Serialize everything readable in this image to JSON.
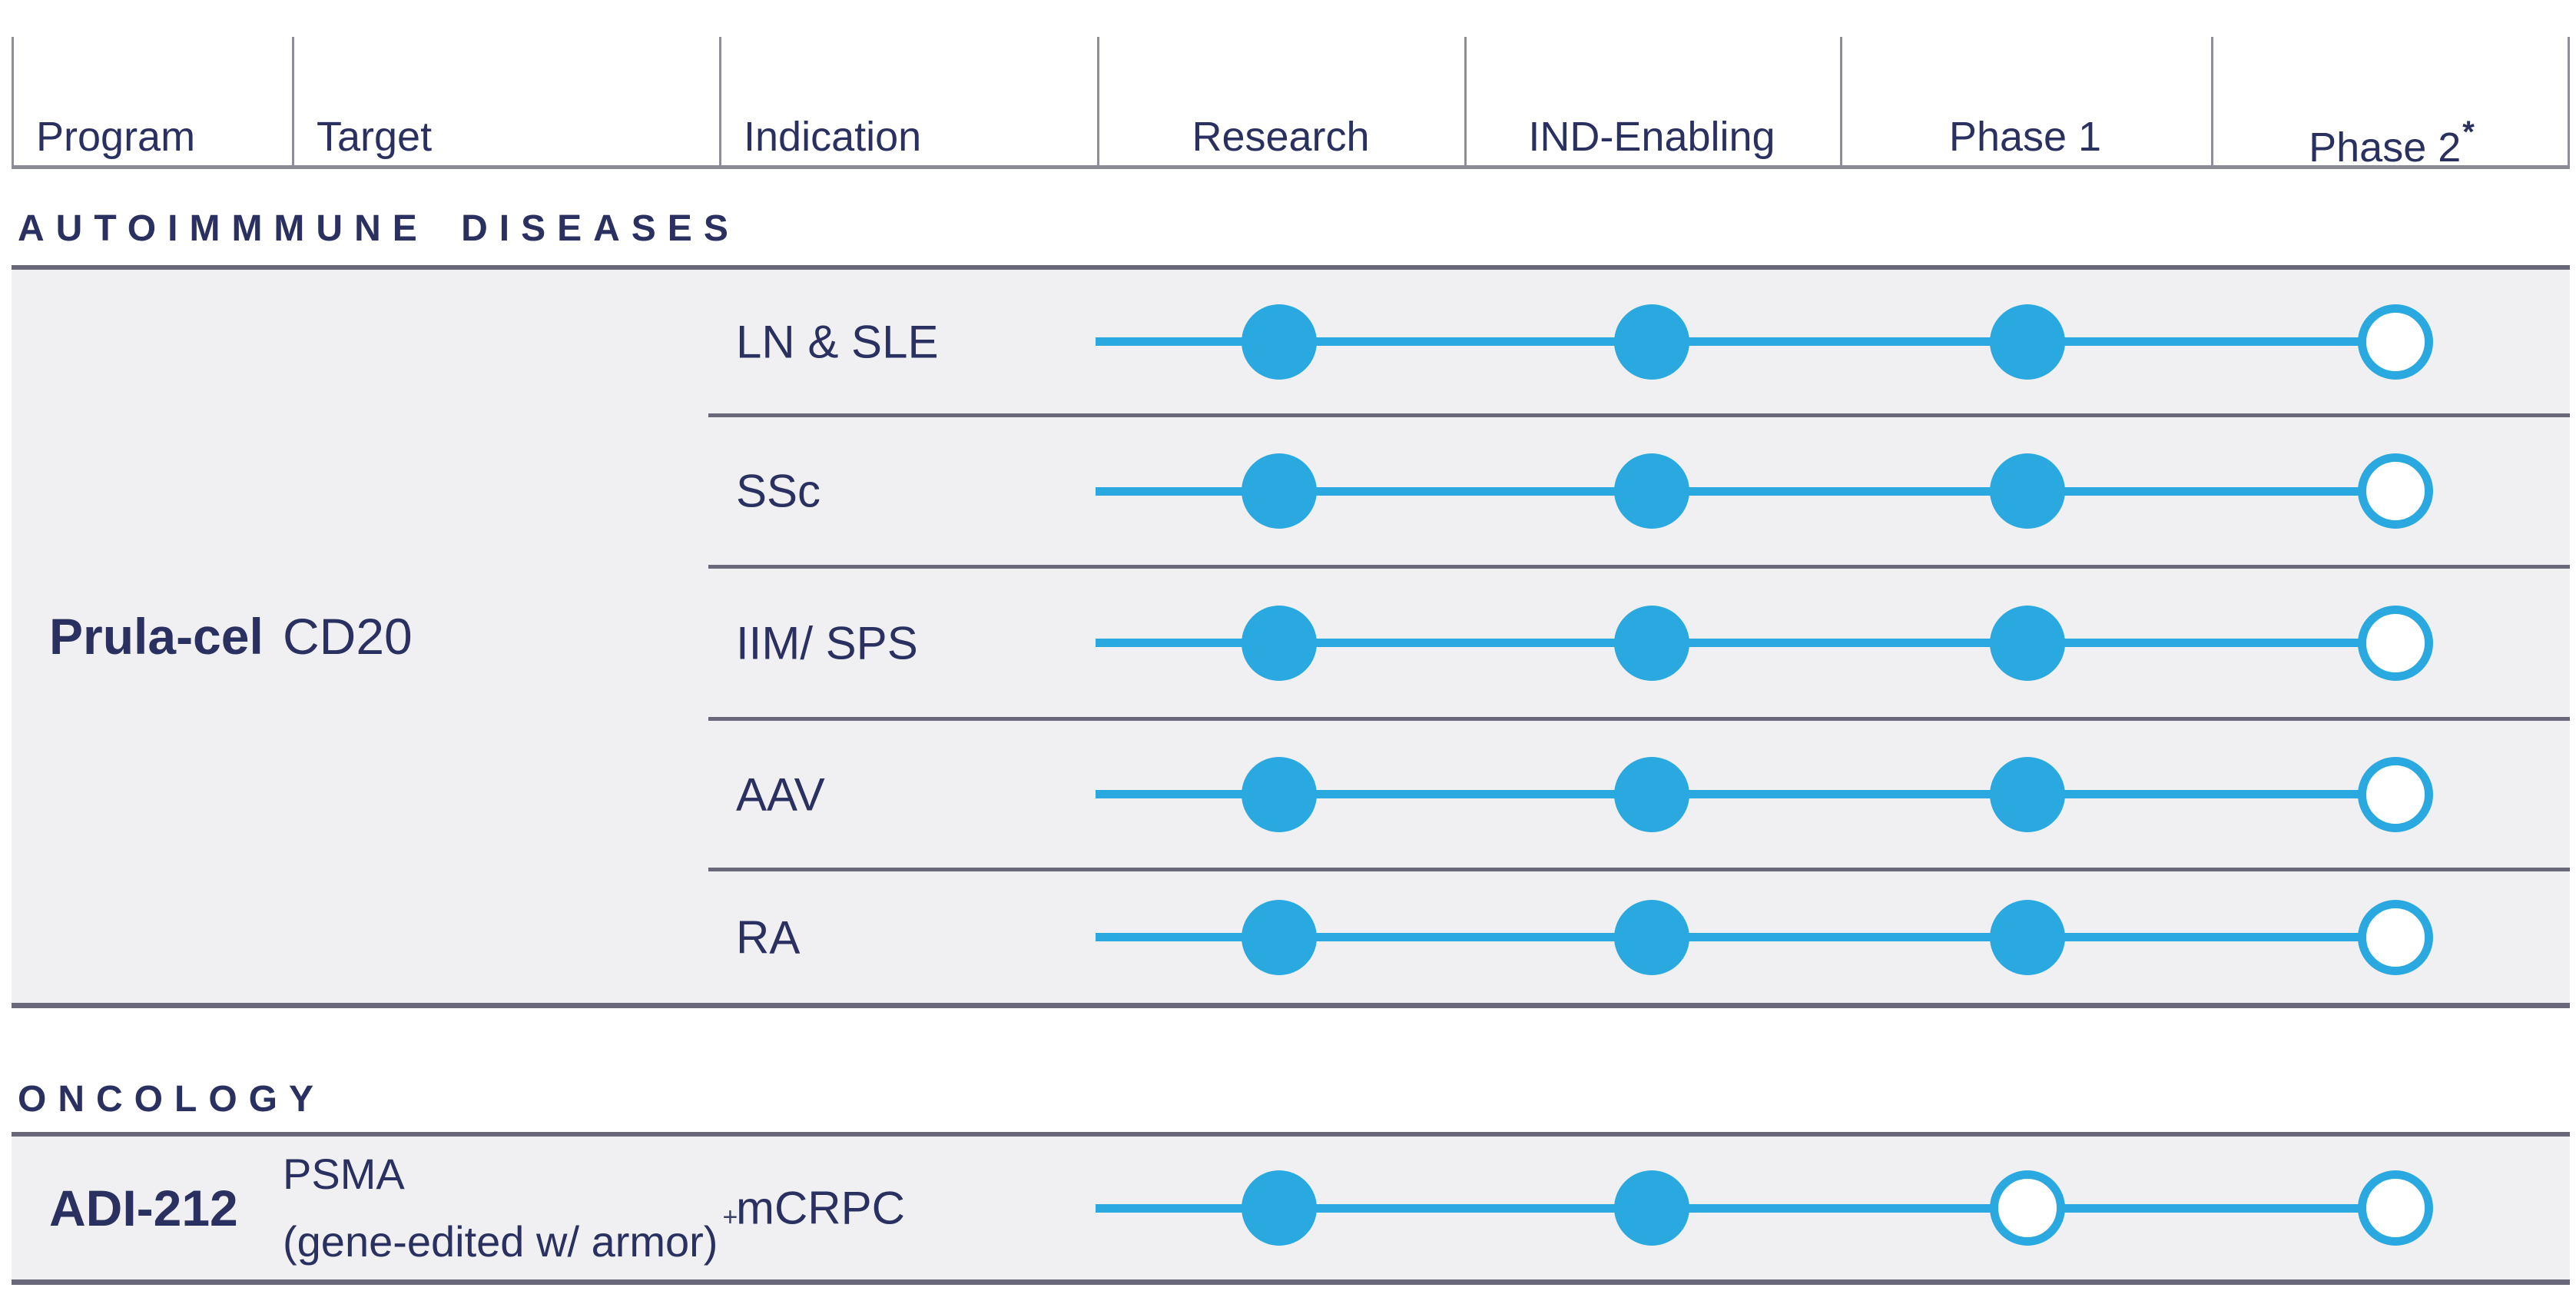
{
  "header": {
    "columns": [
      "Program",
      "Target",
      "Indication",
      "Research",
      "IND-Enabling",
      "Phase 1",
      "Phase 2"
    ],
    "phase2_superscript": "*"
  },
  "sections": [
    {
      "title": "AUTOIMMMUNE DISEASES",
      "program": "Prula-cel",
      "target": "CD20",
      "rows": [
        {
          "indication": "LN & SLE",
          "stages": [
            "filled",
            "filled",
            "filled",
            "open"
          ]
        },
        {
          "indication": "SSc",
          "stages": [
            "filled",
            "filled",
            "filled",
            "open"
          ]
        },
        {
          "indication": "IIM/ SPS",
          "stages": [
            "filled",
            "filled",
            "filled",
            "open"
          ]
        },
        {
          "indication": "AAV",
          "stages": [
            "filled",
            "filled",
            "filled",
            "open"
          ]
        },
        {
          "indication": "RA",
          "stages": [
            "filled",
            "filled",
            "filled",
            "open"
          ]
        }
      ]
    },
    {
      "title": "ONCOLOGY",
      "program": "ADI-212",
      "target_line1": "PSMA",
      "target_line2": "(gene-edited w/ armor)",
      "target_superscript": "+",
      "rows": [
        {
          "indication": "mCRPC",
          "stages": [
            "filled",
            "filled",
            "open",
            "open"
          ]
        }
      ]
    }
  ],
  "colors": {
    "accent_cyan": "#29A9E0",
    "navy_text": "#2A3160",
    "panel_background": "#F0F0F2",
    "divider_dark": "#68687A",
    "header_line_gray": "#8E8E98"
  }
}
